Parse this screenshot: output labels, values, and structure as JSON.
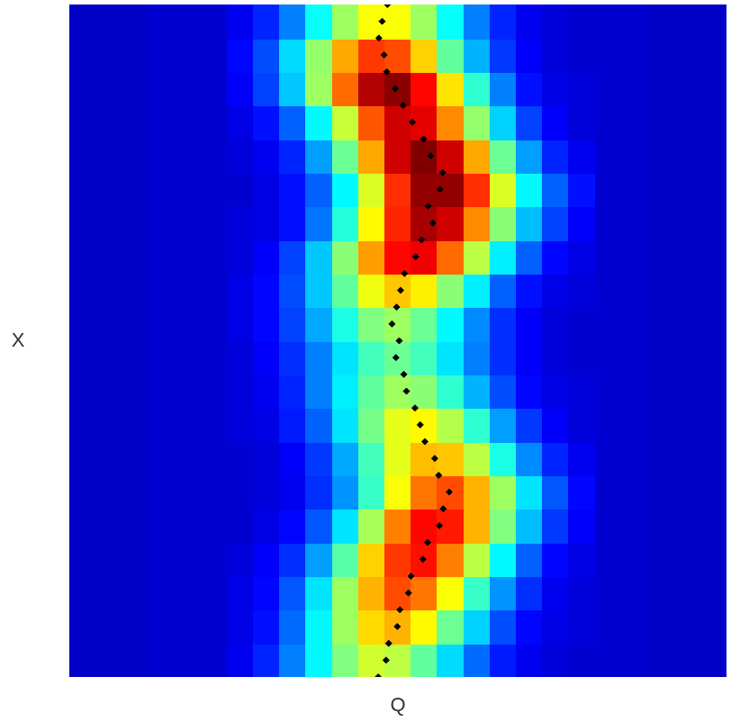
{
  "chart_data": {
    "type": "heatmap",
    "x_label": "Q",
    "y_label": "X",
    "xlim": [
      0,
      100
    ],
    "ylim": [
      0,
      100
    ],
    "tick_labels": false,
    "grid": false,
    "legend": false,
    "x_edges": [
      0,
      4,
      8,
      12,
      16,
      20,
      24,
      28,
      32,
      36,
      40,
      44,
      48,
      52,
      56,
      60,
      64,
      68,
      72,
      76,
      80,
      84,
      88,
      92,
      96,
      100
    ],
    "y_edges": [
      0,
      5,
      10,
      15,
      20,
      25,
      30,
      35,
      40,
      45,
      50,
      55,
      60,
      65,
      70,
      75,
      80,
      85,
      90,
      95,
      100
    ],
    "color_range": [
      0,
      1
    ],
    "cells": [
      [
        0.07,
        0.07,
        0.07,
        0.08,
        0.08,
        0.08,
        0.11,
        0.16,
        0.25,
        0.37,
        0.5,
        0.58,
        0.56,
        0.47,
        0.34,
        0.23,
        0.15,
        0.11,
        0.09,
        0.08,
        0.08,
        0.08,
        0.07,
        0.07,
        0.07
      ],
      [
        0.07,
        0.07,
        0.07,
        0.08,
        0.08,
        0.08,
        0.1,
        0.14,
        0.23,
        0.37,
        0.53,
        0.66,
        0.7,
        0.63,
        0.48,
        0.33,
        0.2,
        0.13,
        0.1,
        0.09,
        0.08,
        0.08,
        0.07,
        0.07,
        0.07
      ],
      [
        0.07,
        0.07,
        0.07,
        0.08,
        0.08,
        0.08,
        0.1,
        0.13,
        0.21,
        0.35,
        0.53,
        0.7,
        0.8,
        0.76,
        0.62,
        0.43,
        0.27,
        0.17,
        0.11,
        0.09,
        0.08,
        0.08,
        0.07,
        0.07,
        0.07
      ],
      [
        0.07,
        0.07,
        0.07,
        0.08,
        0.08,
        0.08,
        0.09,
        0.12,
        0.17,
        0.28,
        0.46,
        0.67,
        0.82,
        0.86,
        0.75,
        0.56,
        0.37,
        0.22,
        0.13,
        0.1,
        0.08,
        0.08,
        0.07,
        0.07,
        0.07
      ],
      [
        0.07,
        0.07,
        0.07,
        0.08,
        0.08,
        0.08,
        0.08,
        0.1,
        0.13,
        0.21,
        0.35,
        0.54,
        0.75,
        0.87,
        0.85,
        0.7,
        0.5,
        0.31,
        0.18,
        0.12,
        0.08,
        0.08,
        0.07,
        0.07,
        0.07
      ],
      [
        0.07,
        0.07,
        0.07,
        0.08,
        0.08,
        0.08,
        0.08,
        0.09,
        0.11,
        0.17,
        0.27,
        0.43,
        0.62,
        0.76,
        0.8,
        0.7,
        0.53,
        0.35,
        0.21,
        0.13,
        0.08,
        0.08,
        0.07,
        0.07,
        0.07
      ],
      [
        0.07,
        0.07,
        0.07,
        0.08,
        0.08,
        0.08,
        0.08,
        0.09,
        0.12,
        0.18,
        0.29,
        0.44,
        0.6,
        0.69,
        0.68,
        0.56,
        0.4,
        0.26,
        0.16,
        0.11,
        0.08,
        0.08,
        0.07,
        0.07,
        0.07
      ],
      [
        0.07,
        0.07,
        0.07,
        0.08,
        0.08,
        0.08,
        0.09,
        0.1,
        0.15,
        0.22,
        0.35,
        0.49,
        0.6,
        0.63,
        0.55,
        0.42,
        0.28,
        0.18,
        0.12,
        0.09,
        0.08,
        0.08,
        0.07,
        0.07,
        0.07
      ],
      [
        0.07,
        0.07,
        0.07,
        0.08,
        0.08,
        0.08,
        0.09,
        0.11,
        0.16,
        0.25,
        0.36,
        0.47,
        0.53,
        0.51,
        0.42,
        0.3,
        0.2,
        0.13,
        0.1,
        0.09,
        0.08,
        0.08,
        0.07,
        0.07,
        0.07
      ],
      [
        0.07,
        0.07,
        0.07,
        0.08,
        0.08,
        0.08,
        0.09,
        0.12,
        0.17,
        0.25,
        0.35,
        0.44,
        0.48,
        0.44,
        0.35,
        0.25,
        0.17,
        0.12,
        0.09,
        0.08,
        0.08,
        0.08,
        0.07,
        0.07,
        0.07
      ],
      [
        0.07,
        0.07,
        0.07,
        0.08,
        0.08,
        0.08,
        0.1,
        0.13,
        0.19,
        0.29,
        0.4,
        0.5,
        0.53,
        0.48,
        0.37,
        0.26,
        0.17,
        0.12,
        0.09,
        0.08,
        0.08,
        0.08,
        0.07,
        0.07,
        0.07
      ],
      [
        0.07,
        0.07,
        0.07,
        0.08,
        0.08,
        0.08,
        0.1,
        0.13,
        0.2,
        0.32,
        0.47,
        0.61,
        0.68,
        0.64,
        0.51,
        0.36,
        0.22,
        0.14,
        0.1,
        0.09,
        0.08,
        0.08,
        0.07,
        0.07,
        0.07
      ],
      [
        0.07,
        0.07,
        0.07,
        0.08,
        0.08,
        0.08,
        0.09,
        0.12,
        0.19,
        0.32,
        0.51,
        0.72,
        0.87,
        0.89,
        0.77,
        0.56,
        0.36,
        0.22,
        0.13,
        0.1,
        0.08,
        0.08,
        0.07,
        0.07,
        0.07
      ],
      [
        0.07,
        0.07,
        0.07,
        0.08,
        0.08,
        0.08,
        0.09,
        0.1,
        0.14,
        0.24,
        0.41,
        0.63,
        0.84,
        0.96,
        0.92,
        0.74,
        0.51,
        0.31,
        0.19,
        0.12,
        0.08,
        0.08,
        0.07,
        0.07,
        0.07
      ],
      [
        0.07,
        0.07,
        0.07,
        0.08,
        0.08,
        0.08,
        0.08,
        0.1,
        0.14,
        0.22,
        0.37,
        0.59,
        0.83,
        0.98,
        0.98,
        0.83,
        0.59,
        0.37,
        0.22,
        0.14,
        0.08,
        0.08,
        0.07,
        0.07,
        0.07
      ],
      [
        0.07,
        0.07,
        0.07,
        0.08,
        0.08,
        0.08,
        0.09,
        0.11,
        0.16,
        0.28,
        0.48,
        0.71,
        0.92,
        1.0,
        0.92,
        0.71,
        0.48,
        0.28,
        0.16,
        0.11,
        0.08,
        0.08,
        0.07,
        0.07,
        0.07
      ],
      [
        0.07,
        0.07,
        0.07,
        0.08,
        0.08,
        0.08,
        0.1,
        0.14,
        0.22,
        0.37,
        0.57,
        0.79,
        0.92,
        0.9,
        0.74,
        0.52,
        0.33,
        0.19,
        0.12,
        0.09,
        0.08,
        0.08,
        0.07,
        0.07,
        0.07
      ],
      [
        0.07,
        0.07,
        0.07,
        0.08,
        0.08,
        0.08,
        0.12,
        0.19,
        0.32,
        0.53,
        0.77,
        0.95,
        0.99,
        0.87,
        0.65,
        0.42,
        0.25,
        0.14,
        0.1,
        0.09,
        0.08,
        0.08,
        0.07,
        0.07,
        0.07
      ],
      [
        0.07,
        0.07,
        0.07,
        0.08,
        0.08,
        0.08,
        0.13,
        0.2,
        0.34,
        0.52,
        0.71,
        0.82,
        0.8,
        0.67,
        0.47,
        0.3,
        0.18,
        0.12,
        0.09,
        0.08,
        0.08,
        0.08,
        0.07,
        0.07,
        0.07
      ],
      [
        0.07,
        0.07,
        0.07,
        0.08,
        0.08,
        0.08,
        0.11,
        0.16,
        0.25,
        0.38,
        0.53,
        0.62,
        0.62,
        0.53,
        0.38,
        0.25,
        0.16,
        0.11,
        0.09,
        0.08,
        0.08,
        0.08,
        0.07,
        0.07,
        0.07
      ]
    ],
    "scatter": {
      "color": "#000000",
      "marker": "diamond",
      "x": [
        47.0,
        48.2,
        48.6,
        49.9,
        50.3,
        51.6,
        52.0,
        53.8,
        54.5,
        56.3,
        56.9,
        57.8,
        56.2,
        55.6,
        54.1,
        53.4,
        52.6,
        51.3,
        50.9,
        49.7,
        50.2,
        49.1,
        49.8,
        50.4,
        51.0,
        52.7,
        53.6,
        55.3,
        54.6,
        56.4,
        56.8,
        55.0,
        53.9,
        52.2,
        50.8,
        49.6,
        48.3,
        47.9,
        47.1,
        47.6,
        48.4
      ],
      "y": [
        0,
        2.5,
        5,
        7.5,
        10,
        12.5,
        15,
        17.5,
        20,
        22.5,
        25,
        27.5,
        30,
        32.5,
        35,
        37.5,
        40,
        42.5,
        45,
        47.5,
        50,
        52.5,
        55,
        57.5,
        60,
        62.5,
        65,
        67.5,
        70,
        72.5,
        75,
        77.5,
        80,
        82.5,
        85,
        87.5,
        90,
        92.5,
        95,
        97.5,
        100
      ]
    }
  }
}
